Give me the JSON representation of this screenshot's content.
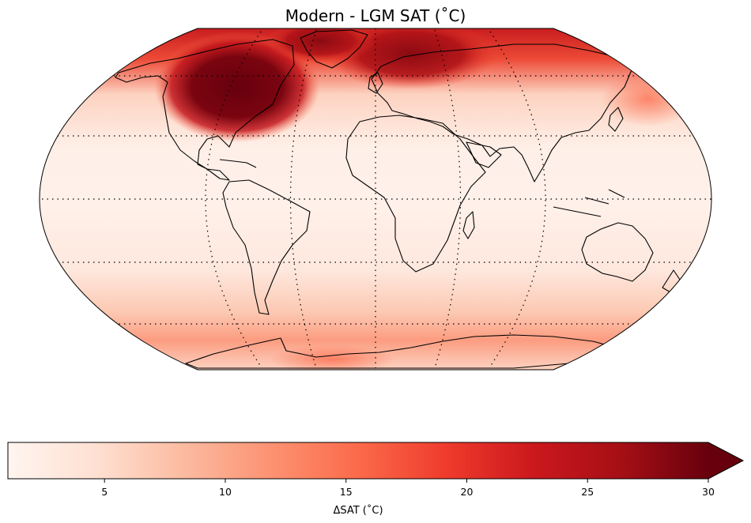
{
  "title": "Modern - LGM SAT (˚C)",
  "colorbar": {
    "label": "ΔSAT (˚C)",
    "min": 1,
    "max": 30,
    "extend": "max",
    "ticks": [
      "5",
      "10",
      "15",
      "20",
      "25",
      "30"
    ],
    "tick_values": [
      5,
      10,
      15,
      20,
      25,
      30
    ],
    "colormap": "Reds",
    "colors": [
      "#fff5f0",
      "#fee0d2",
      "#fcbba1",
      "#fc9272",
      "#fb6a4a",
      "#ef3b2c",
      "#cb181d",
      "#a50f15",
      "#67000d"
    ]
  },
  "map": {
    "projection": "Robinson",
    "gridlines": "dotted",
    "coastlines": true
  }
}
